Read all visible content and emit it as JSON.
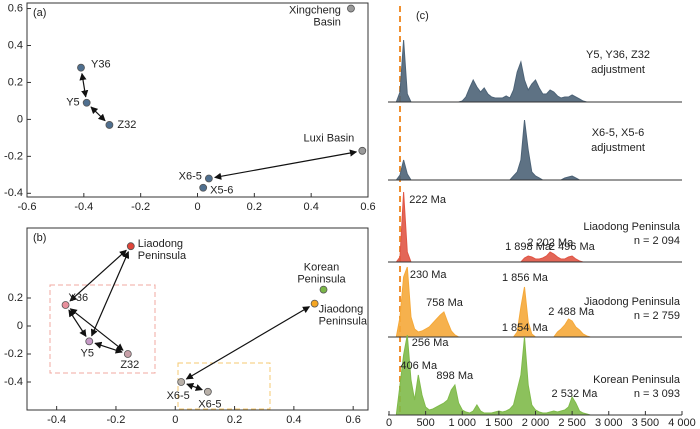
{
  "chart_data": [
    {
      "type": "scatter",
      "panel": "(a)",
      "xlim": [
        -0.6,
        0.6
      ],
      "xticks": [
        -0.6,
        -0.4,
        -0.2,
        0,
        0.2,
        0.4,
        0.6
      ],
      "ylim": [
        -0.42,
        0.63
      ],
      "yticks": [
        -0.4,
        -0.2,
        0,
        0.2,
        0.4,
        0.6
      ],
      "labels": [
        [
          "Y36"
        ],
        [
          "Y5"
        ],
        [
          "Z32"
        ],
        [
          "X6-5"
        ],
        [
          "X5-6"
        ],
        [
          "Luxi Basin"
        ],
        [
          "Xingcheng",
          "Basin"
        ]
      ],
      "x": [
        -0.41,
        -0.39,
        -0.31,
        0.04,
        0.02,
        0.58,
        0.54
      ],
      "values": [
        0.28,
        0.09,
        -0.03,
        -0.32,
        -0.37,
        -0.17,
        0.6
      ],
      "colors": [
        "#4f6f8f",
        "#4f6f8f",
        "#4f6f8f",
        "#4f6f8f",
        "#4f6f8f",
        "#9a9a9a",
        "#9a9a9a"
      ]
    },
    {
      "type": "scatter",
      "panel": "(b)",
      "xlim": [
        -0.5,
        0.65
      ],
      "xticks": [
        -0.4,
        -0.2,
        0,
        0.2,
        0.4,
        0.6
      ],
      "ylim": [
        -0.6,
        0.7
      ],
      "yticks": [
        -0.4,
        -0.2,
        0,
        0.2
      ],
      "labels": [
        [
          "Y36"
        ],
        [
          "Y5"
        ],
        [
          "Z32"
        ],
        [
          "Liaodong",
          "Peninsula"
        ],
        [
          "Korean",
          "Peninsula"
        ],
        [
          "Jiaodong",
          "Peninsula"
        ],
        [
          "X6-5"
        ],
        [
          "X6-5"
        ]
      ],
      "x": [
        -0.37,
        -0.29,
        -0.16,
        -0.15,
        0.5,
        0.47,
        0.02,
        0.11
      ],
      "values": [
        0.15,
        -0.11,
        -0.2,
        0.57,
        0.26,
        0.16,
        -0.4,
        -0.47
      ],
      "colors": [
        "#e8909c",
        "#c69ac6",
        "#c8a0a8",
        "#e0453a",
        "#7ab648",
        "#f5a623",
        "#b8b0a8",
        "#b8b0a8"
      ]
    },
    {
      "type": "ridgeline",
      "panel": "(c)",
      "xlim": [
        0,
        4000
      ],
      "xticks": [
        0,
        500,
        {
          "value": 1000,
          "label": "1 000"
        },
        {
          "value": 1500,
          "label": "1 500"
        },
        {
          "value": 2000,
          "label": "2 000"
        },
        {
          "value": 2500,
          "label": "2 500"
        },
        {
          "value": 3000,
          "label": "3 000"
        },
        {
          "value": 3500,
          "label": "3 500"
        },
        {
          "value": 4000,
          "label": "4 000"
        }
      ],
      "ylim": [
        0,
        100
      ],
      "x": [
        0,
        50,
        100,
        150,
        200,
        250,
        300,
        350,
        400,
        450,
        500,
        550,
        600,
        650,
        700,
        750,
        800,
        850,
        900,
        950,
        1000,
        1050,
        1100,
        1150,
        1200,
        1250,
        1300,
        1350,
        1400,
        1450,
        1500,
        1550,
        1600,
        1650,
        1700,
        1750,
        1800,
        1850,
        1900,
        1950,
        2000,
        2050,
        2100,
        2150,
        2200,
        2250,
        2300,
        2350,
        2400,
        2450,
        2500,
        2550,
        2600,
        2650,
        2700,
        2750,
        2800,
        2850,
        2900,
        2950,
        3000
      ],
      "series": [
        {
          "name": [
            "Y5, Y36, Z32",
            "adjustment"
          ],
          "color": "#4d6377",
          "peaks": [],
          "values": [
            0,
            0,
            0,
            10,
            62,
            8,
            0,
            0,
            0,
            0,
            0,
            0,
            0,
            0,
            0,
            0,
            0,
            0,
            0,
            0,
            1,
            5,
            14,
            22,
            15,
            10,
            14,
            8,
            5,
            4,
            4,
            4,
            6,
            4,
            12,
            30,
            40,
            22,
            12,
            18,
            22,
            14,
            8,
            8,
            12,
            10,
            6,
            4,
            5,
            5,
            7,
            5,
            3,
            1,
            0,
            0,
            0,
            0,
            0,
            0,
            0
          ]
        },
        {
          "name": [
            "X6-5, X5-6",
            "adjustment"
          ],
          "color": "#4d6377",
          "peaks": [],
          "values": [
            0,
            0,
            0,
            5,
            20,
            6,
            0,
            0,
            0,
            0,
            0,
            0,
            0,
            0,
            0,
            0,
            0,
            0,
            0,
            0,
            0,
            0,
            0,
            0,
            0,
            0,
            0,
            0,
            0,
            0,
            0,
            0,
            0,
            0,
            4,
            8,
            20,
            60,
            30,
            8,
            4,
            2,
            0,
            0,
            0,
            0,
            0,
            0,
            2,
            3,
            4,
            2,
            0,
            0,
            0,
            0,
            0,
            0,
            0,
            0,
            0
          ]
        },
        {
          "name": [
            "Liaodong Peninsula"
          ],
          "n": "n = 2 094",
          "color": "#e05545",
          "peaks": [
            {
              "value": 222,
              "label": "222 Ma"
            },
            {
              "value": 1898,
              "label": "1 898 Ma"
            },
            {
              "value": 2202,
              "label": "2 202 Ma"
            },
            {
              "value": 2496,
              "label": "2 496 Ma"
            }
          ],
          "values": [
            0,
            0,
            0,
            5,
            70,
            10,
            0,
            0,
            0,
            0,
            0,
            0,
            0,
            0,
            0,
            0,
            0,
            0,
            0,
            0,
            0,
            0,
            0,
            0,
            0,
            0,
            0,
            0,
            0,
            0,
            0,
            0,
            0,
            0,
            0,
            0,
            0,
            4,
            6,
            5,
            3,
            3,
            4,
            6,
            10,
            8,
            5,
            3,
            3,
            5,
            6,
            3,
            1,
            0,
            0,
            0,
            0,
            0,
            0,
            0,
            0
          ]
        },
        {
          "name": [
            "Jiaodong Peninsula"
          ],
          "n": "n = 2 759",
          "color": "#f5a93a",
          "peaks": [
            {
              "value": 230,
              "label": "230 Ma"
            },
            {
              "value": 758,
              "label": "758 Ma"
            },
            {
              "value": 1856,
              "label": "1 856 Ma"
            },
            {
              "value": 2488,
              "label": "2 488 Ma"
            }
          ],
          "values": [
            0,
            0,
            0,
            20,
            60,
            70,
            20,
            8,
            5,
            6,
            8,
            10,
            14,
            18,
            22,
            25,
            15,
            6,
            2,
            0,
            0,
            0,
            0,
            0,
            0,
            0,
            0,
            0,
            0,
            0,
            0,
            0,
            0,
            0,
            0,
            5,
            30,
            50,
            15,
            3,
            0,
            0,
            0,
            0,
            0,
            0,
            5,
            8,
            12,
            18,
            16,
            10,
            7,
            3,
            1,
            0,
            0,
            0,
            0,
            0,
            0
          ]
        },
        {
          "name": [
            "Korean Peninsula"
          ],
          "n": "n = 3 093",
          "color": "#7fba4a",
          "peaks": [
            {
              "value": 256,
              "label": "256 Ma"
            },
            {
              "value": 406,
              "label": "406 Ma"
            },
            {
              "value": 898,
              "label": "898 Ma"
            },
            {
              "value": 1854,
              "label": "1 854 Ma"
            },
            {
              "value": 2532,
              "label": "2 532 Ma"
            }
          ],
          "values": [
            0,
            0,
            0,
            30,
            60,
            80,
            35,
            15,
            40,
            20,
            8,
            5,
            6,
            8,
            10,
            12,
            15,
            25,
            30,
            12,
            5,
            3,
            2,
            4,
            10,
            4,
            2,
            2,
            2,
            3,
            4,
            3,
            4,
            6,
            10,
            25,
            40,
            78,
            30,
            10,
            5,
            3,
            2,
            2,
            3,
            4,
            3,
            4,
            5,
            8,
            18,
            12,
            4,
            2,
            1,
            0,
            0,
            0,
            0,
            0,
            0
          ]
        }
      ]
    }
  ]
}
